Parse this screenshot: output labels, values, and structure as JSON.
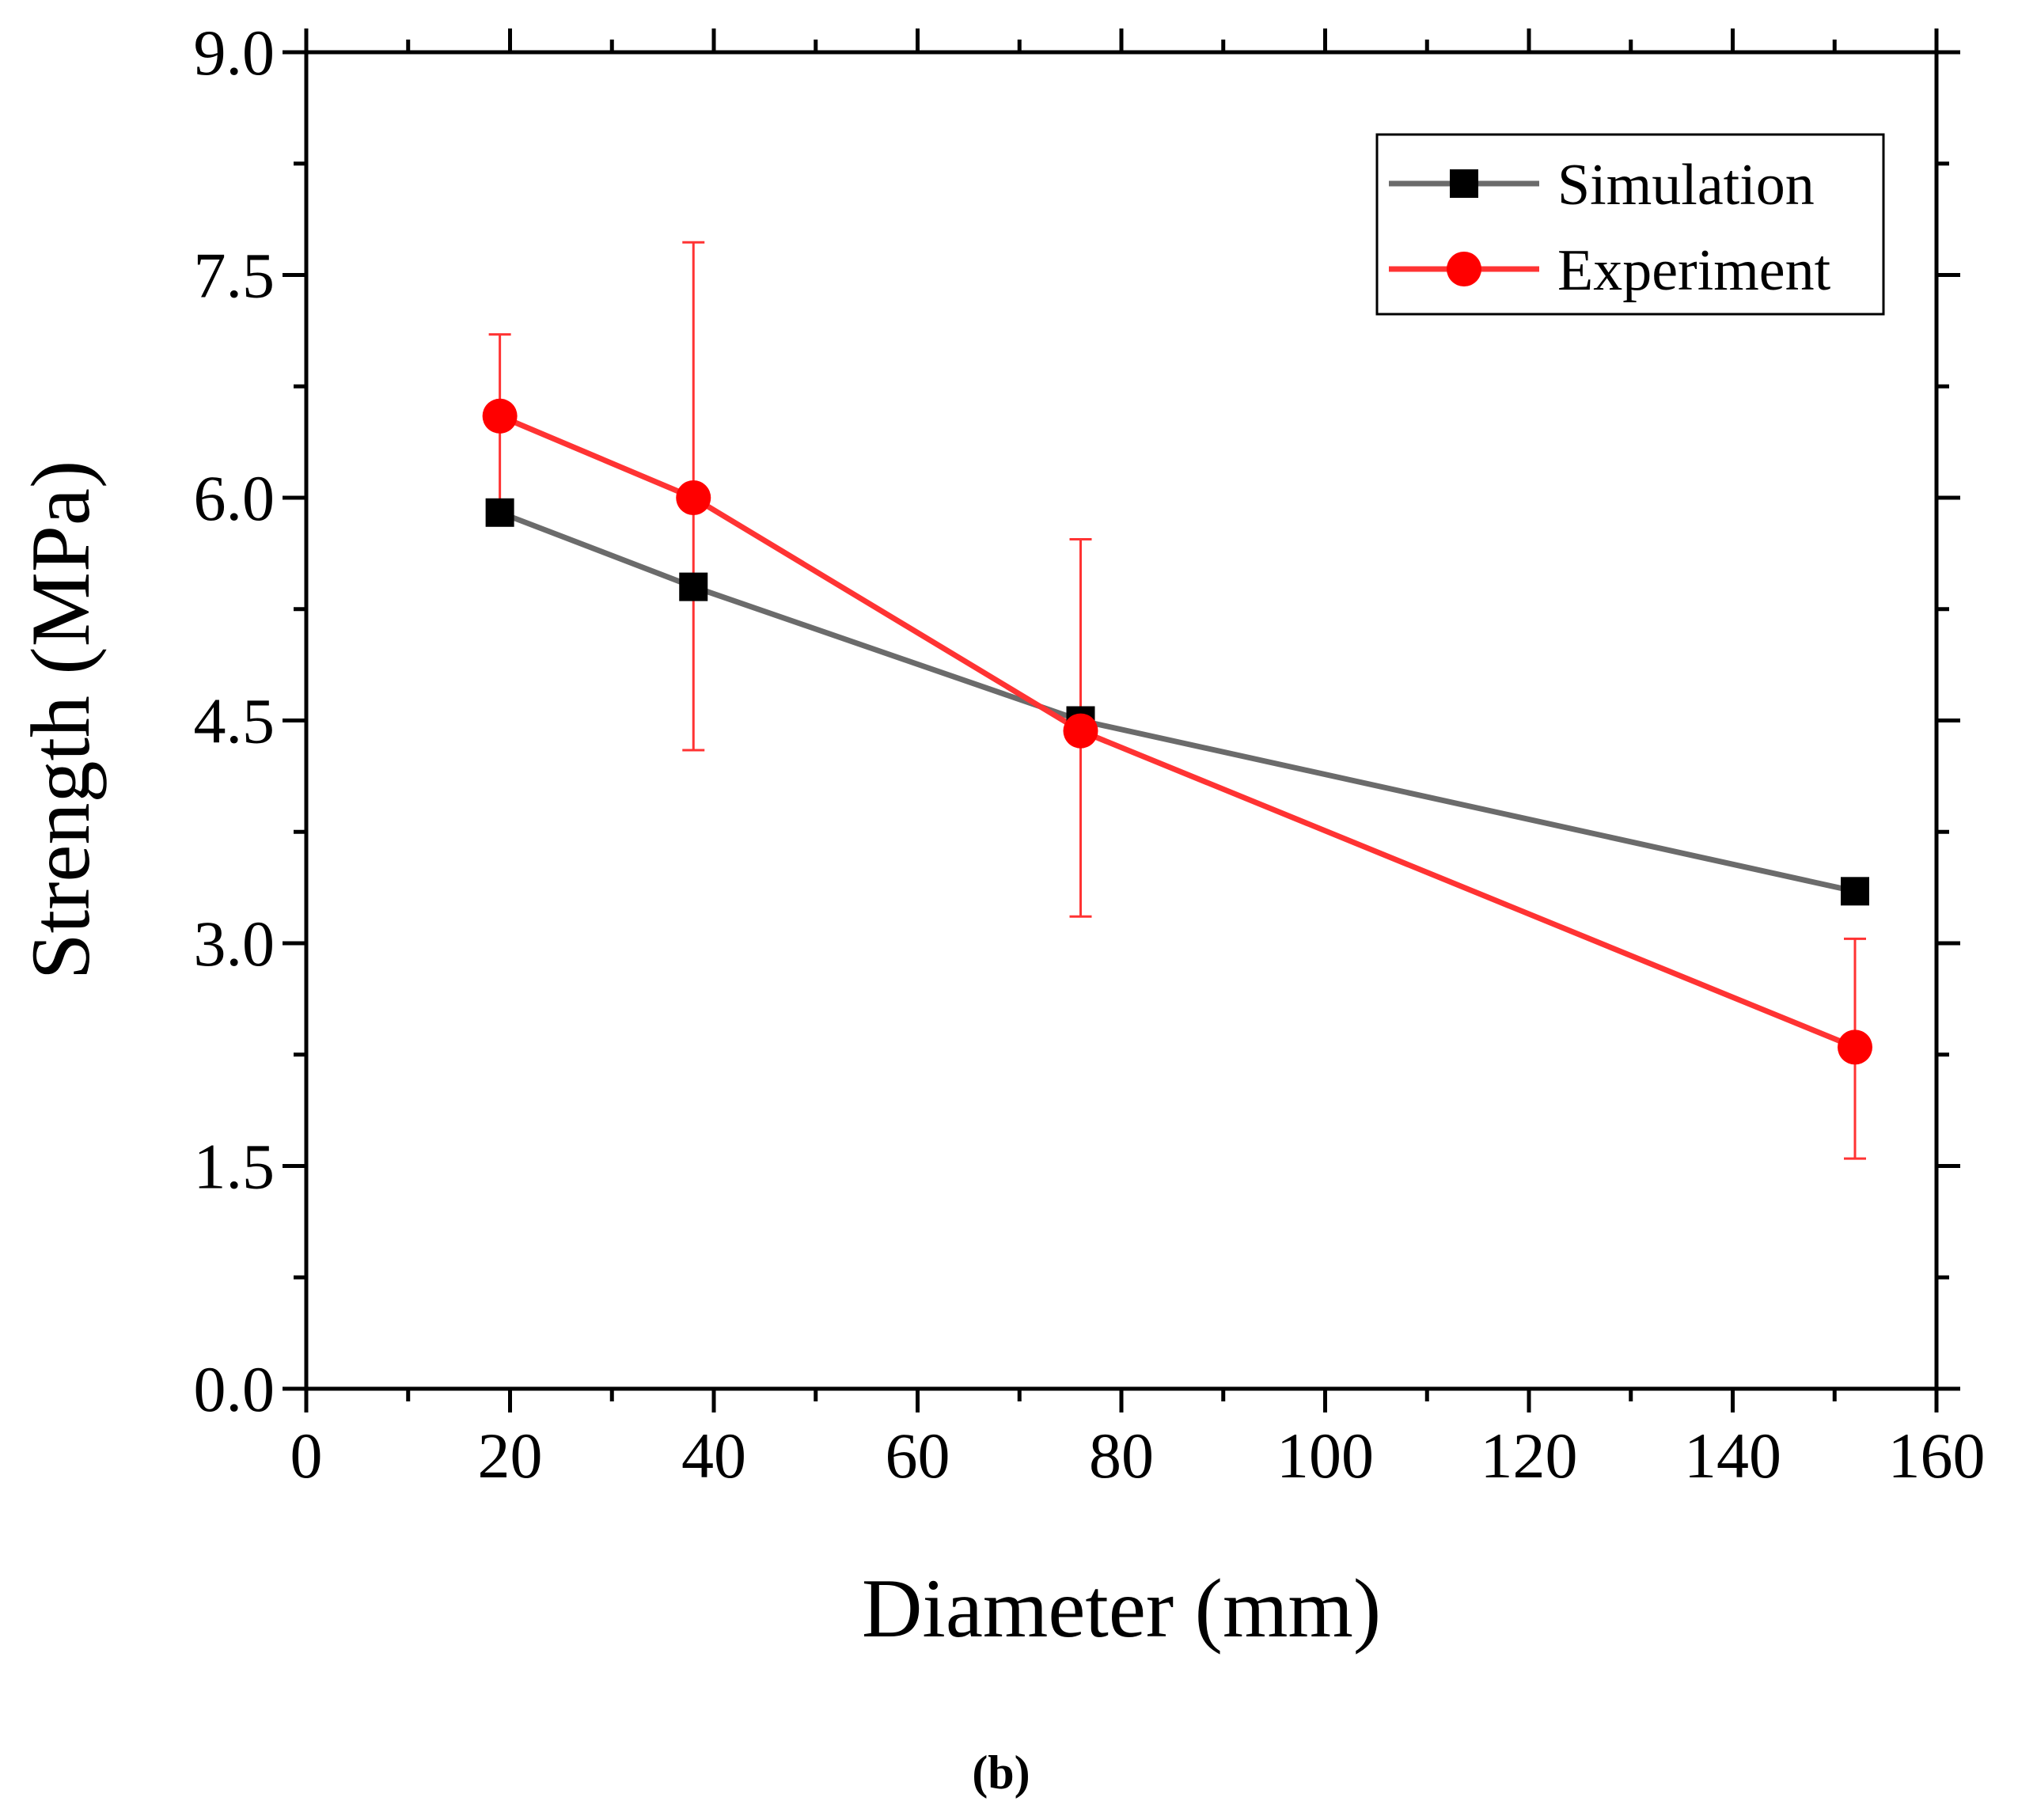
{
  "chart_data": {
    "type": "line",
    "title": "",
    "xlabel": "Diameter (mm)",
    "ylabel": "Strength (MPa)",
    "xlim": [
      0,
      160
    ],
    "ylim": [
      0,
      9
    ],
    "xticks": [
      0,
      20,
      40,
      60,
      80,
      100,
      120,
      140,
      160
    ],
    "xtick_labels": [
      "0",
      "20",
      "40",
      "60",
      "80",
      "100",
      "120",
      "140",
      "160"
    ],
    "yticks": [
      0,
      1.5,
      3,
      4.5,
      6,
      7.5,
      9
    ],
    "ytick_labels": [
      "0.0",
      "1.5",
      "3.0",
      "4.5",
      "6.0",
      "7.5",
      "9.0"
    ],
    "grid": false,
    "legend_position": "top-right",
    "panel_label": "(b)",
    "series": [
      {
        "name": "Simulation",
        "color": "#6b6b6b",
        "marker": "square",
        "marker_color": "#000000",
        "x": [
          19,
          38,
          76,
          152
        ],
        "y": [
          5.9,
          5.4,
          4.5,
          3.35
        ]
      },
      {
        "name": "Experiment",
        "color": "#ff3333",
        "marker": "circle",
        "marker_color": "#ff0000",
        "x": [
          19,
          38,
          76,
          152
        ],
        "y": [
          6.55,
          6.0,
          4.43,
          2.3
        ],
        "error_low": [
          5.97,
          4.3,
          3.18,
          1.55
        ],
        "error_high": [
          7.1,
          7.72,
          5.72,
          3.03
        ]
      }
    ]
  }
}
